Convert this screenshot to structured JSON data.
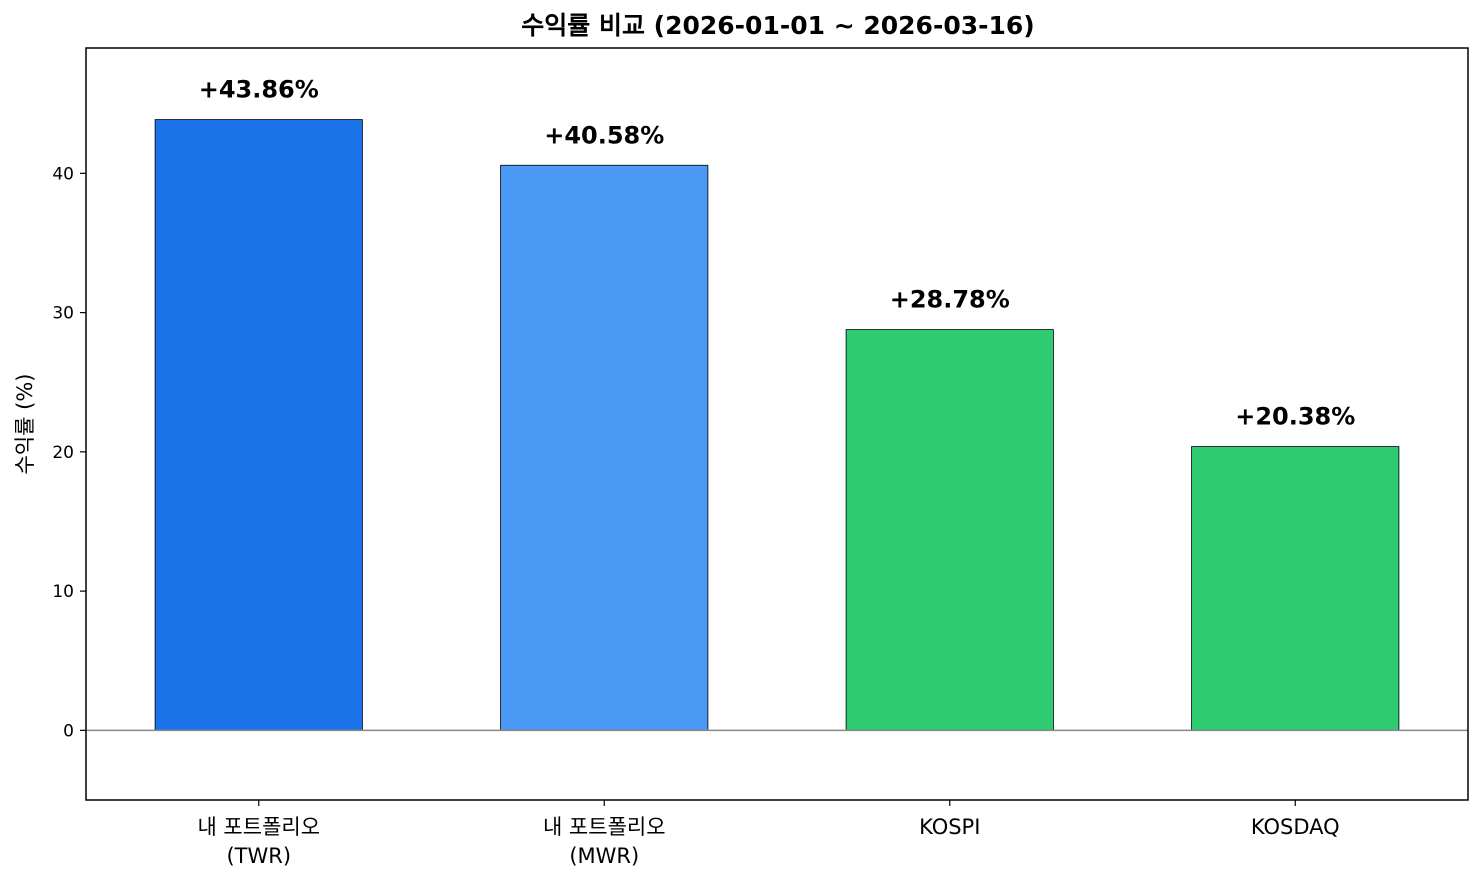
{
  "chart_data": {
    "type": "bar",
    "title": "수익률 비교 (2026-01-01 ~ 2026-03-16)",
    "xlabel": "",
    "ylabel": "수익률 (%)",
    "ylim": [
      -5,
      49
    ],
    "yticks": [
      0,
      10,
      20,
      30,
      40
    ],
    "categories": [
      [
        "내 포트폴리오",
        "(TWR)"
      ],
      [
        "내 포트폴리오",
        "(MWR)"
      ],
      [
        "KOSPI"
      ],
      [
        "KOSDAQ"
      ]
    ],
    "values": [
      43.86,
      40.58,
      28.78,
      20.38
    ],
    "value_labels": [
      "+43.86%",
      "+40.58%",
      "+28.78%",
      "+20.38%"
    ],
    "colors": [
      "#1a73e8",
      "#4a99f5",
      "#2ecc71",
      "#2ecc71"
    ],
    "zero_line_color": "#888888",
    "grid": false,
    "legend": "none"
  }
}
